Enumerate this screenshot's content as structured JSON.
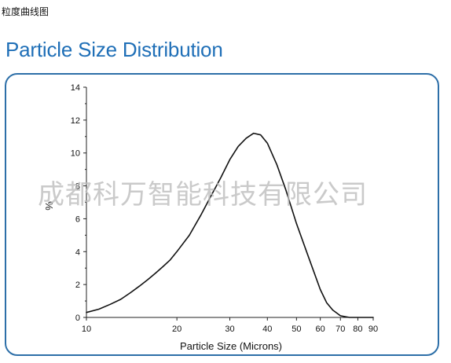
{
  "page": {
    "caption": "粒度曲线图",
    "heading": "Particle Size Distribution",
    "watermark": "成都科万智能科技有限公司"
  },
  "colors": {
    "heading": "#1f6fb7",
    "panel_border": "#2d6fa8",
    "curve": "#111111"
  },
  "chart_data": {
    "type": "line",
    "title": "",
    "xlabel": "Particle Size (Microns)",
    "ylabel": "%",
    "x_scale": "log",
    "xlim": [
      10,
      90
    ],
    "ylim": [
      0,
      14
    ],
    "x_ticks": [
      10,
      20,
      30,
      40,
      50,
      60,
      70,
      80,
      90
    ],
    "y_ticks": [
      0,
      2,
      4,
      6,
      8,
      10,
      12,
      14
    ],
    "grid": false,
    "legend": "none",
    "series": [
      {
        "x": [
          10,
          11,
          12,
          13,
          14,
          15,
          16,
          17,
          18,
          19,
          20,
          22,
          24,
          26,
          28,
          30,
          32,
          34,
          36,
          38,
          40,
          43,
          46,
          50,
          55,
          60,
          63,
          66,
          70,
          75,
          80,
          90
        ],
        "y": [
          0.3,
          0.5,
          0.8,
          1.1,
          1.5,
          1.9,
          2.3,
          2.7,
          3.1,
          3.5,
          4.0,
          5.0,
          6.2,
          7.4,
          8.5,
          9.6,
          10.4,
          10.9,
          11.2,
          11.1,
          10.6,
          9.3,
          7.8,
          5.7,
          3.6,
          1.7,
          0.9,
          0.45,
          0.1,
          0.0,
          0.0,
          0.0
        ]
      }
    ]
  }
}
